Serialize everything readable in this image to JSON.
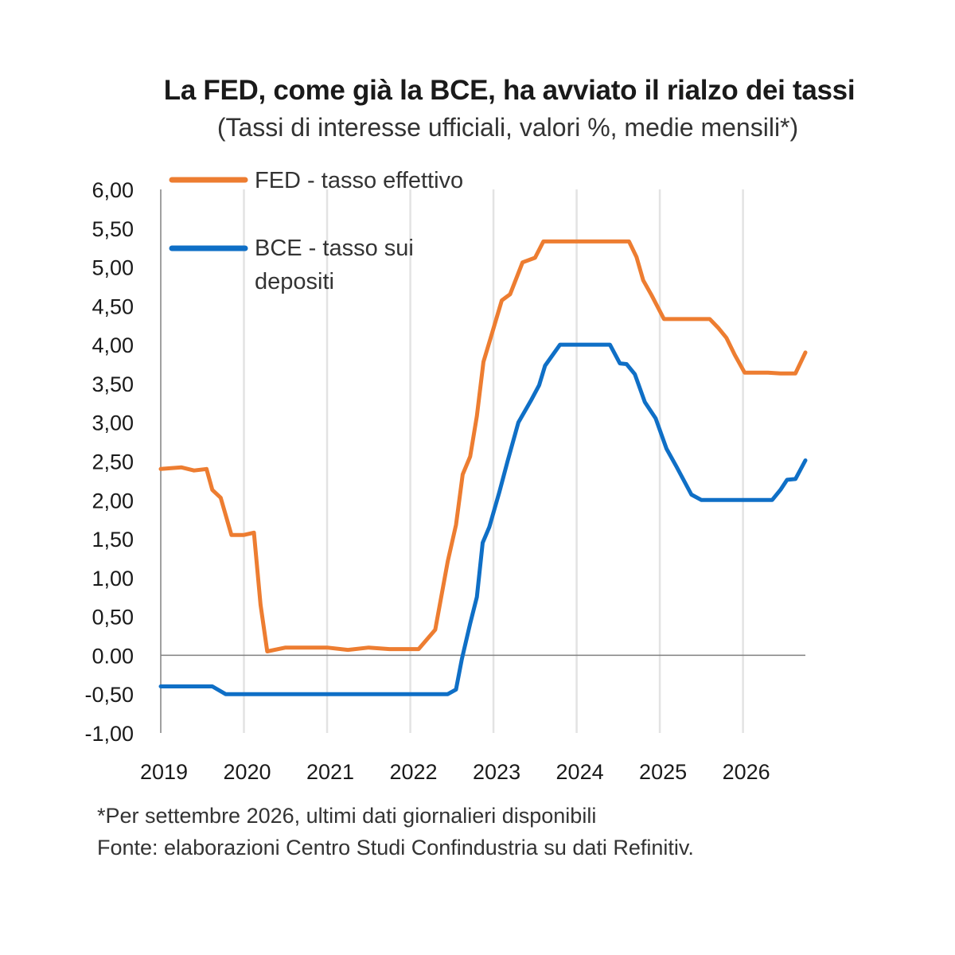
{
  "chart_data": {
    "type": "line",
    "title": "La FED, come già la BCE, ha avviato il rialzo dei tassi",
    "subtitle": "(Tassi di interesse ufficiali, valori %, medie mensili*)",
    "xlabel": "",
    "ylabel": "",
    "xlim": [
      2019.0,
      2026.75
    ],
    "ylim": [
      -1.0,
      6.0
    ],
    "yticks": [
      "6,00",
      "5,50",
      "5,00",
      "4,50",
      "4,00",
      "3,50",
      "3,00",
      "2,50",
      "2,00",
      "1,50",
      "1,00",
      "0,50",
      "0.00",
      "-0,50",
      "-1,00"
    ],
    "xticks": [
      "2019",
      "2020",
      "2021",
      "2022",
      "2023",
      "2024",
      "2025",
      "2026"
    ],
    "grid": "vertical",
    "legend_position": "top-left",
    "series": [
      {
        "name": "FED - tasso effettivo",
        "color": "#ed7d31",
        "points": [
          [
            2019.0,
            2.4
          ],
          [
            2019.25,
            2.42
          ],
          [
            2019.4,
            2.38
          ],
          [
            2019.55,
            2.4
          ],
          [
            2019.62,
            2.13
          ],
          [
            2019.72,
            2.03
          ],
          [
            2019.85,
            1.55
          ],
          [
            2020.0,
            1.55
          ],
          [
            2020.12,
            1.58
          ],
          [
            2020.2,
            0.65
          ],
          [
            2020.28,
            0.05
          ],
          [
            2020.5,
            0.1
          ],
          [
            2021.0,
            0.1
          ],
          [
            2021.25,
            0.07
          ],
          [
            2021.5,
            0.1
          ],
          [
            2021.75,
            0.08
          ],
          [
            2022.1,
            0.08
          ],
          [
            2022.3,
            0.33
          ],
          [
            2022.45,
            1.21
          ],
          [
            2022.55,
            1.68
          ],
          [
            2022.63,
            2.33
          ],
          [
            2022.72,
            2.56
          ],
          [
            2022.8,
            3.08
          ],
          [
            2022.88,
            3.78
          ],
          [
            2022.97,
            4.1
          ],
          [
            2023.1,
            4.57
          ],
          [
            2023.2,
            4.65
          ],
          [
            2023.35,
            5.06
          ],
          [
            2023.5,
            5.12
          ],
          [
            2023.6,
            5.33
          ],
          [
            2024.0,
            5.33
          ],
          [
            2024.63,
            5.33
          ],
          [
            2024.72,
            5.13
          ],
          [
            2024.8,
            4.83
          ],
          [
            2024.9,
            4.64
          ],
          [
            2025.05,
            4.33
          ],
          [
            2025.3,
            4.33
          ],
          [
            2025.6,
            4.33
          ],
          [
            2025.7,
            4.22
          ],
          [
            2025.8,
            4.09
          ],
          [
            2025.9,
            3.87
          ],
          [
            2026.02,
            3.64
          ],
          [
            2026.3,
            3.64
          ],
          [
            2026.45,
            3.63
          ],
          [
            2026.63,
            3.63
          ],
          [
            2026.75,
            3.9
          ]
        ]
      },
      {
        "name": "BCE - tasso sui depositi",
        "color": "#0f6fc6",
        "points": [
          [
            2019.0,
            -0.4
          ],
          [
            2019.62,
            -0.4
          ],
          [
            2019.78,
            -0.5
          ],
          [
            2022.45,
            -0.5
          ],
          [
            2022.55,
            -0.44
          ],
          [
            2022.62,
            -0.05
          ],
          [
            2022.72,
            0.41
          ],
          [
            2022.8,
            0.75
          ],
          [
            2022.87,
            1.45
          ],
          [
            2022.95,
            1.65
          ],
          [
            2023.07,
            2.1
          ],
          [
            2023.17,
            2.5
          ],
          [
            2023.3,
            3.0
          ],
          [
            2023.45,
            3.28
          ],
          [
            2023.55,
            3.48
          ],
          [
            2023.62,
            3.73
          ],
          [
            2023.8,
            4.0
          ],
          [
            2024.4,
            4.0
          ],
          [
            2024.52,
            3.76
          ],
          [
            2024.6,
            3.75
          ],
          [
            2024.7,
            3.62
          ],
          [
            2024.82,
            3.26
          ],
          [
            2024.95,
            3.05
          ],
          [
            2025.08,
            2.66
          ],
          [
            2025.2,
            2.43
          ],
          [
            2025.38,
            2.07
          ],
          [
            2025.5,
            2.0
          ],
          [
            2026.0,
            2.0
          ],
          [
            2026.35,
            2.0
          ],
          [
            2026.45,
            2.13
          ],
          [
            2026.53,
            2.26
          ],
          [
            2026.63,
            2.27
          ],
          [
            2026.75,
            2.51
          ]
        ]
      }
    ],
    "footnote": "*Per settembre 2026, ultimi dati giornalieri disponibili",
    "source": "Fonte: elaborazioni Centro Studi Confindustria su dati Refinitiv."
  },
  "legend": {
    "fed_label": "FED - tasso effettivo",
    "bce_label_line1": "BCE - tasso sui",
    "bce_label_line2": "depositi"
  }
}
